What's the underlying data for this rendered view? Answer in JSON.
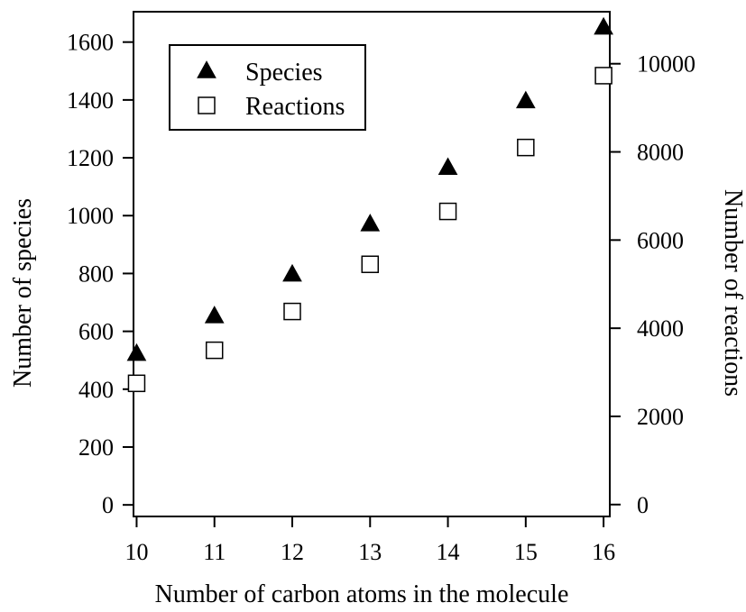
{
  "chart_data": {
    "type": "scatter",
    "title": "",
    "xlabel": "Number of carbon atoms in the molecule",
    "ylabel": "Number of species",
    "y2label": "Number of reactions",
    "x": [
      10,
      11,
      12,
      13,
      14,
      15,
      16
    ],
    "xlim": [
      9.96,
      16.08
    ],
    "ylim": [
      -40,
      1705
    ],
    "y2lim": [
      -270,
      11180
    ],
    "xticks": [
      "10",
      "11",
      "12",
      "13",
      "14",
      "15",
      "16"
    ],
    "yticks": [
      "0",
      "200",
      "400",
      "600",
      "800",
      "1000",
      "1200",
      "1400",
      "1600"
    ],
    "y2ticks": [
      "0",
      "2000",
      "4000",
      "6000",
      "8000",
      "10000"
    ],
    "grid": false,
    "legend_position": "top-left",
    "series": [
      {
        "name": "Species",
        "axis": "left",
        "marker": "filled-triangle",
        "color": "#000000",
        "values": [
          522,
          652,
          796,
          970,
          1165,
          1395,
          1650
        ]
      },
      {
        "name": "Reactions",
        "axis": "right",
        "marker": "open-square",
        "color": "#000000",
        "values": [
          2750,
          3500,
          4380,
          5450,
          6650,
          8100,
          9730
        ]
      }
    ]
  }
}
